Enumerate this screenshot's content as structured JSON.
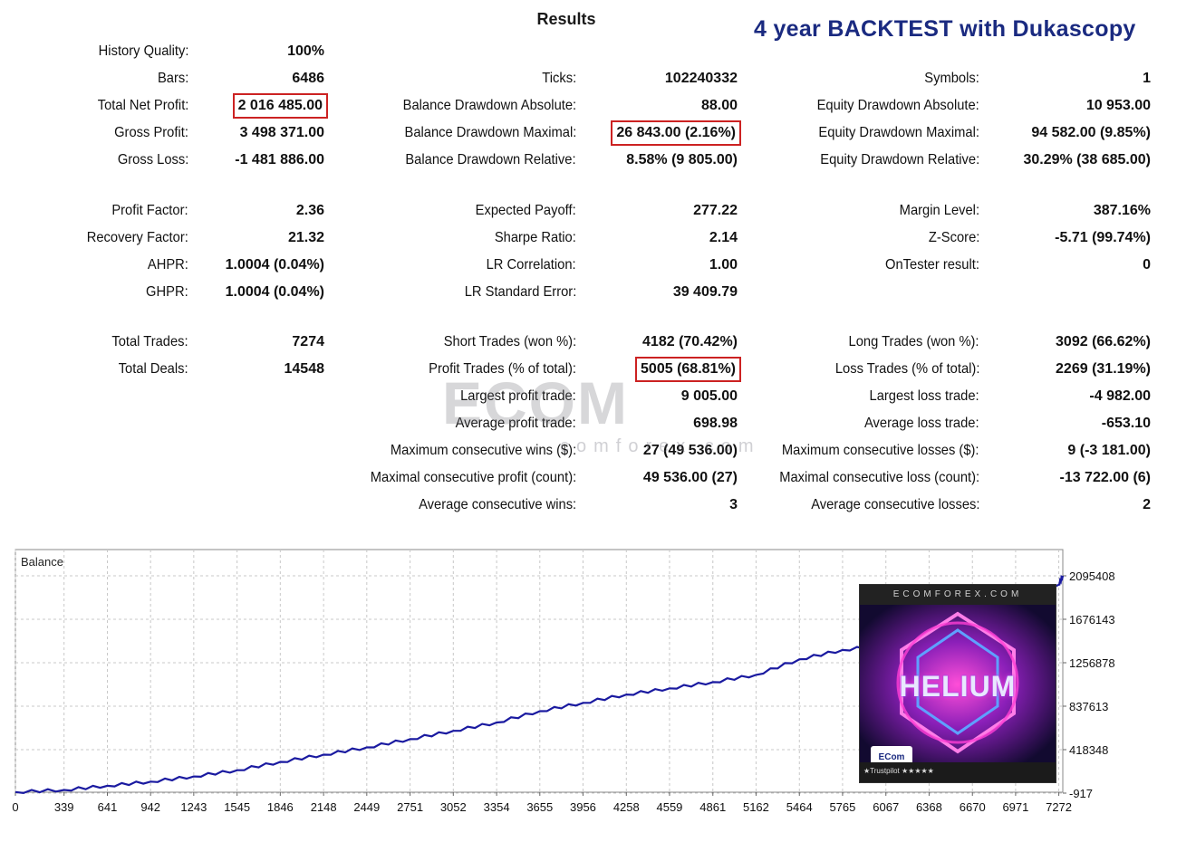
{
  "header": {
    "title": "Results",
    "banner": "4 year BACKTEST with Dukascopy"
  },
  "stats": [
    {
      "label": "History Quality:",
      "value": "100%",
      "col": 0,
      "row": 0
    },
    {
      "label": "Bars:",
      "value": "6486",
      "col": 0,
      "row": 1
    },
    {
      "label": "Total Net Profit:",
      "value": "2 016 485.00",
      "col": 0,
      "row": 2,
      "highlight": true
    },
    {
      "label": "Gross Profit:",
      "value": "3 498 371.00",
      "col": 0,
      "row": 3
    },
    {
      "label": "Gross Loss:",
      "value": "-1 481 886.00",
      "col": 0,
      "row": 4
    },
    {
      "label": "Profit Factor:",
      "value": "2.36",
      "col": 0,
      "row": 5
    },
    {
      "label": "Recovery Factor:",
      "value": "21.32",
      "col": 0,
      "row": 6
    },
    {
      "label": "AHPR:",
      "value": "1.0004 (0.04%)",
      "col": 0,
      "row": 7
    },
    {
      "label": "GHPR:",
      "value": "1.0004 (0.04%)",
      "col": 0,
      "row": 8
    },
    {
      "label": "Total Trades:",
      "value": "7274",
      "col": 0,
      "row": 9
    },
    {
      "label": "Total Deals:",
      "value": "14548",
      "col": 0,
      "row": 10
    },
    {
      "label": "Ticks:",
      "value": "102240332",
      "col": 1,
      "row": 1
    },
    {
      "label": "Balance Drawdown Absolute:",
      "value": "88.00",
      "col": 1,
      "row": 2
    },
    {
      "label": "Balance Drawdown Maximal:",
      "value": "26 843.00 (2.16%)",
      "col": 1,
      "row": 3,
      "highlight": true
    },
    {
      "label": "Balance Drawdown Relative:",
      "value": "8.58% (9 805.00)",
      "col": 1,
      "row": 4
    },
    {
      "label": "Expected Payoff:",
      "value": "277.22",
      "col": 1,
      "row": 5
    },
    {
      "label": "Sharpe Ratio:",
      "value": "2.14",
      "col": 1,
      "row": 6
    },
    {
      "label": "LR Correlation:",
      "value": "1.00",
      "col": 1,
      "row": 7
    },
    {
      "label": "LR Standard Error:",
      "value": "39 409.79",
      "col": 1,
      "row": 8
    },
    {
      "label": "Short Trades (won %):",
      "value": "4182 (70.42%)",
      "col": 1,
      "row": 9
    },
    {
      "label": "Profit Trades (% of total):",
      "value": "5005 (68.81%)",
      "col": 1,
      "row": 10,
      "highlight": true
    },
    {
      "label": "Largest profit trade:",
      "value": "9 005.00",
      "col": 1,
      "row": 11
    },
    {
      "label": "Average profit trade:",
      "value": "698.98",
      "col": 1,
      "row": 12
    },
    {
      "label": "Maximum consecutive wins ($):",
      "value": "27 (49 536.00)",
      "col": 1,
      "row": 13
    },
    {
      "label": "Maximal consecutive profit (count):",
      "value": "49 536.00 (27)",
      "col": 1,
      "row": 14
    },
    {
      "label": "Average consecutive wins:",
      "value": "3",
      "col": 1,
      "row": 15
    },
    {
      "label": "Symbols:",
      "value": "1",
      "col": 2,
      "row": 1
    },
    {
      "label": "Equity Drawdown Absolute:",
      "value": "10 953.00",
      "col": 2,
      "row": 2
    },
    {
      "label": "Equity Drawdown Maximal:",
      "value": "94 582.00 (9.85%)",
      "col": 2,
      "row": 3
    },
    {
      "label": "Equity Drawdown Relative:",
      "value": "30.29% (38 685.00)",
      "col": 2,
      "row": 4
    },
    {
      "label": "Margin Level:",
      "value": "387.16%",
      "col": 2,
      "row": 5
    },
    {
      "label": "Z-Score:",
      "value": "-5.71 (99.74%)",
      "col": 2,
      "row": 6
    },
    {
      "label": "OnTester result:",
      "value": "0",
      "col": 2,
      "row": 7
    },
    {
      "label": "Long Trades (won %):",
      "value": "3092 (66.62%)",
      "col": 2,
      "row": 9
    },
    {
      "label": "Loss Trades (% of total):",
      "value": "2269 (31.19%)",
      "col": 2,
      "row": 10
    },
    {
      "label": "Largest loss trade:",
      "value": "-4 982.00",
      "col": 2,
      "row": 11
    },
    {
      "label": "Average loss trade:",
      "value": "-653.10",
      "col": 2,
      "row": 12
    },
    {
      "label": "Maximum consecutive losses ($):",
      "value": "9 (-3 181.00)",
      "col": 2,
      "row": 13
    },
    {
      "label": "Maximal consecutive loss (count):",
      "value": "-13 722.00 (6)",
      "col": 2,
      "row": 14
    },
    {
      "label": "Average consecutive losses:",
      "value": "2",
      "col": 2,
      "row": 15
    }
  ],
  "watermark": {
    "logo": "ECOM",
    "text": "comforex.com"
  },
  "promo": {
    "site": "ECOMFOREX.COM",
    "name": "HELIUM",
    "mini_logo": "ECom",
    "trustpilot": "★Trustpilot ★★★★★"
  },
  "chart_data": {
    "type": "line",
    "title": "",
    "legend": "Balance",
    "xlabel": "",
    "ylabel": "",
    "x_ticks": [
      0,
      339,
      641,
      942,
      1243,
      1545,
      1846,
      2148,
      2449,
      2751,
      3052,
      3354,
      3655,
      3956,
      4258,
      4559,
      4861,
      5162,
      5464,
      5765,
      6067,
      6368,
      6670,
      6971,
      7272
    ],
    "y_ticks": [
      -917,
      418348,
      837613,
      1256878,
      1676143,
      2095408
    ],
    "xlim": [
      0,
      7300
    ],
    "ylim": [
      -917,
      2200000
    ],
    "series": [
      {
        "name": "Balance",
        "color": "#1a1aa0",
        "x": [
          0,
          339,
          641,
          942,
          1243,
          1545,
          1846,
          2148,
          2449,
          2751,
          3052,
          3354,
          3655,
          3956,
          4258,
          4559,
          4861,
          5162,
          5464,
          5765,
          6067,
          6368,
          6670,
          6971,
          7272,
          7300
        ],
        "y": [
          10000,
          30000,
          70000,
          110000,
          160000,
          220000,
          300000,
          370000,
          440000,
          520000,
          600000,
          680000,
          790000,
          870000,
          950000,
          1010000,
          1070000,
          1140000,
          1290000,
          1380000,
          1430000,
          1560000,
          1720000,
          1880000,
          2010000,
          2095408
        ]
      }
    ]
  }
}
